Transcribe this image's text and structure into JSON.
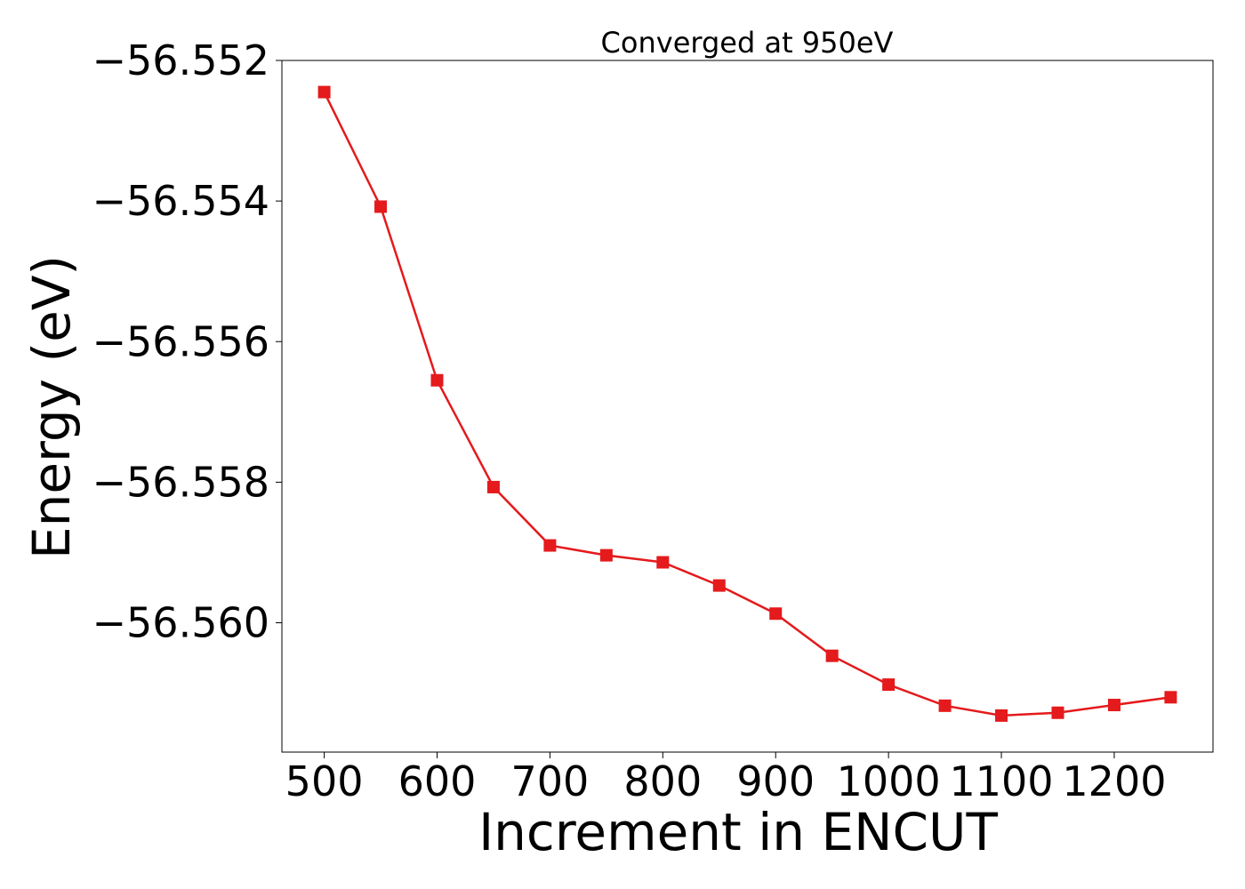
{
  "chart_data": {
    "type": "line",
    "title": "Converged at 950eV",
    "xlabel": "Increment in ENCUT",
    "ylabel": "Energy (eV)",
    "x": [
      500,
      550,
      600,
      650,
      700,
      750,
      800,
      850,
      900,
      950,
      1000,
      1050,
      1100,
      1150,
      1200,
      1250
    ],
    "series": [
      {
        "name": "",
        "color": "#e41a1c",
        "marker": "square",
        "values": [
          -56.55245,
          -56.55408,
          -56.55655,
          -56.55807,
          -56.5589,
          -56.55904,
          -56.55914,
          -56.55947,
          -56.55987,
          -56.56047,
          -56.56088,
          -56.56118,
          -56.56132,
          -56.56128,
          -56.56117,
          -56.56106
        ]
      }
    ],
    "xlim": [
      1862,
      1288
    ],
    "xticks": [
      "500",
      "600",
      "700",
      "800",
      "900",
      "1000",
      "1100",
      "1200"
    ],
    "xtick_values": [
      500,
      600,
      700,
      800,
      900,
      1000,
      1100,
      1200
    ],
    "ylim": [
      -56.56184,
      -56.552
    ],
    "yticks": [
      "−56.552",
      "−56.554",
      "−56.556",
      "−56.558",
      "−56.560"
    ],
    "ytick_values": [
      -56.552,
      -56.554,
      -56.556,
      -56.558,
      -56.56
    ],
    "grid": false,
    "legend": "none"
  }
}
